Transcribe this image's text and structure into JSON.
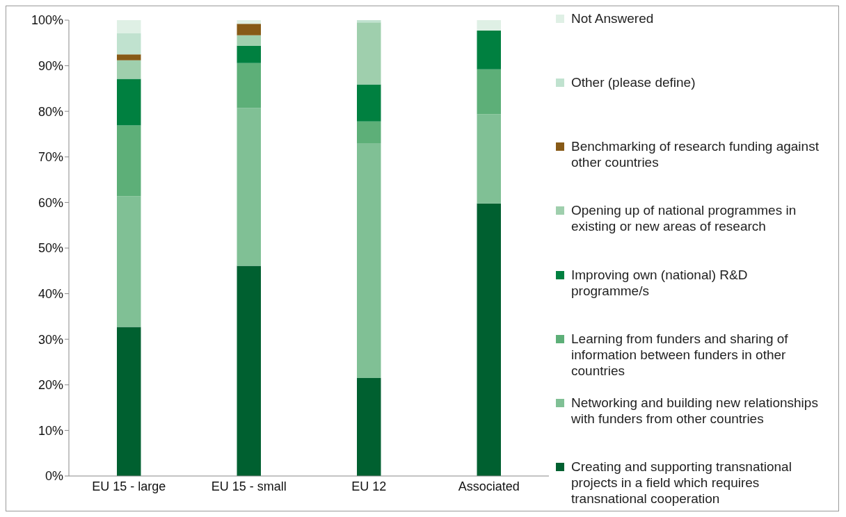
{
  "chart_data": {
    "type": "bar",
    "stacked": true,
    "categories": [
      "EU 15 - large",
      "EU 15 - small",
      "EU 12",
      "Associated"
    ],
    "series": [
      {
        "name": "Creating and supporting transnational projects in a  field which requires transnational cooperation",
        "color": "#006030",
        "values": [
          32.7,
          46.1,
          21.5,
          59.8
        ]
      },
      {
        "name": "Networking and building new relationships with funders from other countries",
        "color": "#80c095",
        "values": [
          28.7,
          34.6,
          51.5,
          19.6
        ]
      },
      {
        "name": "Learning from funders and sharing of information between funders in other countries",
        "color": "#5daf78",
        "values": [
          15.5,
          9.9,
          4.8,
          9.8
        ]
      },
      {
        "name": "Improving own (national) R&D programme/s",
        "color": "#008040",
        "values": [
          10.2,
          3.8,
          8.1,
          8.5
        ]
      },
      {
        "name": "Opening up of national programmes in existing or new areas of research",
        "color": "#9fcfad",
        "values": [
          4.1,
          2.3,
          13.6,
          0
        ]
      },
      {
        "name": "Benchmarking of research funding against other countries",
        "color": "#875a17",
        "values": [
          1.3,
          2.5,
          0,
          0
        ]
      },
      {
        "name": "Other (please define)",
        "color": "#c0e2cf",
        "values": [
          4.6,
          0,
          0.5,
          0
        ]
      },
      {
        "name": "Not Answered",
        "color": "#dff0e5",
        "values": [
          2.9,
          0.8,
          0,
          2.3
        ]
      }
    ],
    "ylim": [
      0,
      100
    ],
    "yticks": [
      {
        "value": 0,
        "label": "0%"
      },
      {
        "value": 10,
        "label": "10%"
      },
      {
        "value": 20,
        "label": "20%"
      },
      {
        "value": 30,
        "label": "30%"
      },
      {
        "value": 40,
        "label": "40%"
      },
      {
        "value": 50,
        "label": "50%"
      },
      {
        "value": 60,
        "label": "60%"
      },
      {
        "value": 70,
        "label": "70%"
      },
      {
        "value": 80,
        "label": "80%"
      },
      {
        "value": 90,
        "label": "90%"
      },
      {
        "value": 100,
        "label": "100%"
      }
    ],
    "grid": false,
    "legend": "right"
  }
}
